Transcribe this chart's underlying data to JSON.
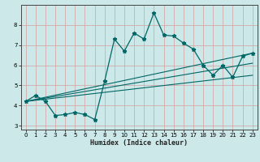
{
  "xlabel": "Humidex (Indice chaleur)",
  "bg_color": "#cce8e8",
  "line_color": "#006666",
  "grid_color_major": "#d4a0a0",
  "xlim": [
    -0.5,
    23.5
  ],
  "ylim": [
    2.8,
    9.0
  ],
  "yticks": [
    3,
    4,
    5,
    6,
    7,
    8
  ],
  "xticks": [
    0,
    1,
    2,
    3,
    4,
    5,
    6,
    7,
    8,
    9,
    10,
    11,
    12,
    13,
    14,
    15,
    16,
    17,
    18,
    19,
    20,
    21,
    22,
    23
  ],
  "spiky_x": [
    0,
    1,
    2,
    3,
    4,
    5,
    6,
    7,
    8,
    9,
    10,
    11,
    12,
    13,
    14,
    15,
    16,
    17,
    18,
    19,
    20,
    21,
    22,
    23
  ],
  "spiky_y": [
    4.2,
    4.5,
    4.2,
    3.5,
    3.55,
    3.65,
    3.55,
    3.3,
    5.2,
    7.3,
    6.7,
    7.6,
    7.3,
    8.6,
    7.5,
    7.45,
    7.1,
    6.8,
    6.0,
    5.5,
    6.0,
    5.4,
    6.45,
    6.6
  ],
  "line2_x": [
    0,
    23
  ],
  "line2_y": [
    4.2,
    6.6
  ],
  "line3_x": [
    0,
    23
  ],
  "line3_y": [
    4.2,
    5.5
  ],
  "line4_x": [
    0,
    23
  ],
  "line4_y": [
    4.2,
    6.1
  ]
}
